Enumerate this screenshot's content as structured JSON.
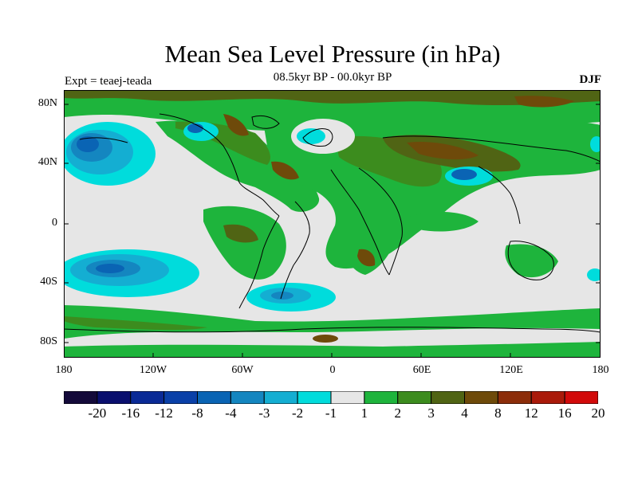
{
  "title": "Mean Sea Level Pressure (in hPa)",
  "subtitle": "08.5kyr BP - 00.0kyr BP",
  "experiment": "Expt = teaej-teada",
  "season": "DJF",
  "lat_labels": [
    "80N",
    "40N",
    "0",
    "40S",
    "80S"
  ],
  "lon_labels": [
    "180",
    "120W",
    "60W",
    "0",
    "60E",
    "120E",
    "180"
  ],
  "colorbar": {
    "labels": [
      "-20",
      "-16",
      "-12",
      "-8",
      "-4",
      "-3",
      "-2",
      "-1",
      "1",
      "2",
      "3",
      "4",
      "8",
      "12",
      "16",
      "20"
    ],
    "colors": [
      "#140a3a",
      "#0a0f6e",
      "#0a2a96",
      "#0a40a8",
      "#0a64b4",
      "#1486c0",
      "#14aed2",
      "#00dcdc",
      "#e6e6e6",
      "#1eb43c",
      "#3c8c1e",
      "#506414",
      "#6e4a0a",
      "#8c2d0a",
      "#aa1a0a",
      "#d20a0a"
    ]
  },
  "map_colors": {
    "ocean_neutral": "#e6e6e6",
    "green": "#1eb43c",
    "dark_green": "#3c8c1e",
    "olive": "#506414",
    "brown": "#6e4a0a",
    "cyan": "#00dcdc",
    "light_blue": "#14aed2",
    "mid_blue": "#1486c0",
    "blue": "#0a64b4"
  }
}
